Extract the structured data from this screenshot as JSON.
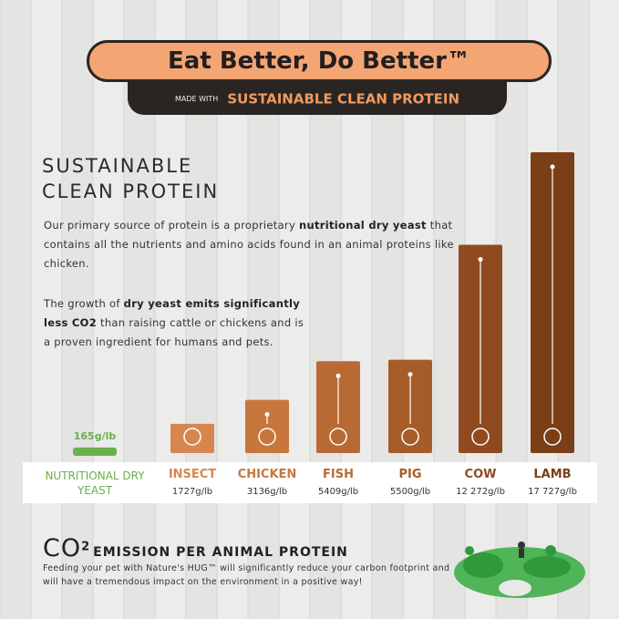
{
  "header": {
    "title": "Eat Better, Do Better™",
    "made_with": "MADE WITH",
    "subtitle": "SUSTAINABLE CLEAN PROTEIN"
  },
  "intro": {
    "heading": [
      "SUSTAINABLE",
      "CLEAN PROTEIN"
    ],
    "paragraph1": [
      "Our primary source of protein is a proprietary ",
      "nutritional dry yeast",
      " that contains all the nutrients and amino acids found in an animal proteins like chicken."
    ],
    "paragraph2": [
      "The growth of ",
      "dry yeast emits significantly less CO2",
      " than raising cattle or chickens and is a proven ingredient for humans and pets."
    ]
  },
  "chart_data": {
    "type": "bar",
    "categories": [
      "NUTRITIONAL DRY YEAST",
      "INSECT",
      "CHICKEN",
      "FISH",
      "PIG",
      "COW",
      "LAMB"
    ],
    "values": [
      165,
      1727,
      3136,
      5409,
      5500,
      12272,
      17727
    ],
    "value_labels": [
      "165g/lb",
      "1727g/lb",
      "3136g/lb",
      "5409g/lb",
      "5500g/lb",
      "12 272g/lb",
      "17 727g/lb"
    ],
    "colors": [
      "#6ab04c",
      "#d88650",
      "#c8763e",
      "#b86a34",
      "#a65c28",
      "#8f4b1f",
      "#7b3f17"
    ]
  },
  "footer": {
    "title_co": "CO",
    "title_sup": "2",
    "title_rest": "EMISSION PER ANIMAL PROTEIN",
    "body": "Feeding your pet with Nature's HUG™ will significantly reduce your carbon footprint and will have a tremendous impact on the environment in a positive way!"
  }
}
